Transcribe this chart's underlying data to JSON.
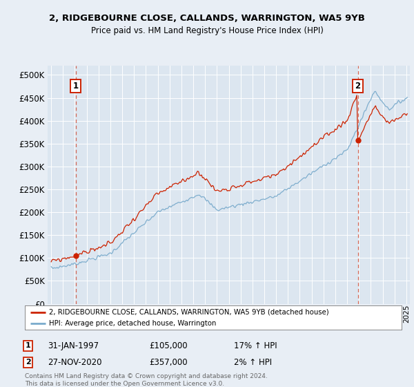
{
  "title1": "2, RIDGEBOURNE CLOSE, CALLANDS, WARRINGTON, WA5 9YB",
  "title2": "Price paid vs. HM Land Registry's House Price Index (HPI)",
  "background_color": "#e8eef5",
  "plot_bg_color": "#dce6f0",
  "grid_color": "#ffffff",
  "hpi_line_color": "#7aabcc",
  "price_line_color": "#cc2200",
  "sale1_date": "31-JAN-1997",
  "sale1_price": 105000,
  "sale1_pct": "17%",
  "sale2_date": "27-NOV-2020",
  "sale2_price": 357000,
  "sale2_pct": "2%",
  "legend_label1": "2, RIDGEBOURNE CLOSE, CALLANDS, WARRINGTON, WA5 9YB (detached house)",
  "legend_label2": "HPI: Average price, detached house, Warrington",
  "footer": "Contains HM Land Registry data © Crown copyright and database right 2024.\nThis data is licensed under the Open Government Licence v3.0.",
  "ylim_min": 0,
  "ylim_max": 520000,
  "yticks": [
    0,
    50000,
    100000,
    150000,
    200000,
    250000,
    300000,
    350000,
    400000,
    450000,
    500000
  ],
  "sale1_x": 1997.08,
  "sale1_y": 105000,
  "sale2_x": 2020.9,
  "sale2_y": 357000,
  "xmin": 1994.7,
  "xmax": 2025.3
}
